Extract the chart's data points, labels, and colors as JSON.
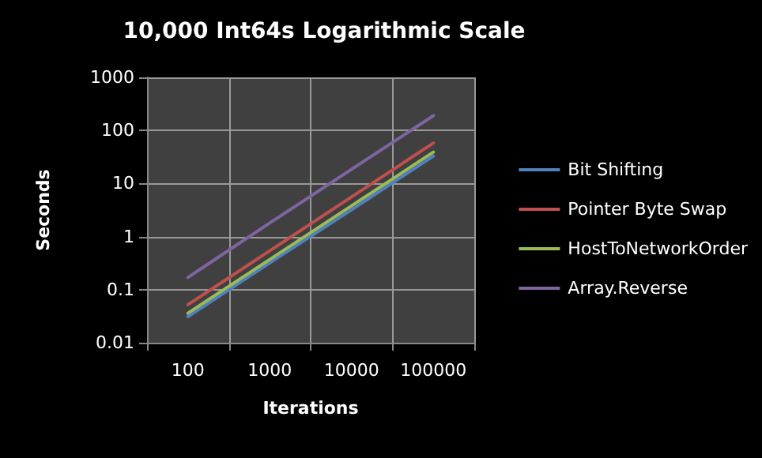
{
  "chart_data": {
    "type": "line",
    "title": "10,000 Int64s Logarithmic Scale",
    "xlabel": "Iterations",
    "ylabel": "Seconds",
    "categories": [
      "100",
      "1000",
      "10000",
      "100000"
    ],
    "series": [
      {
        "name": "Bit Shifting",
        "color": "#4f81bd",
        "values": [
          0.031,
          0.32,
          3.2,
          33
        ]
      },
      {
        "name": "Pointer Byte Swap",
        "color": "#c0504d",
        "values": [
          0.052,
          0.54,
          5.6,
          58
        ]
      },
      {
        "name": "HostToNetworkOrder",
        "color": "#9bbb59",
        "values": [
          0.036,
          0.37,
          3.8,
          39
        ]
      },
      {
        "name": "Array.Reverse",
        "color": "#8064a2",
        "values": [
          0.17,
          1.8,
          18.5,
          190
        ]
      }
    ],
    "log": true,
    "ylim": [
      0.01,
      1000
    ],
    "yticks": [
      0.01,
      0.1,
      1,
      10,
      100,
      1000
    ],
    "grid": true,
    "legend": "right",
    "marker": "none",
    "line_style": "solid"
  }
}
